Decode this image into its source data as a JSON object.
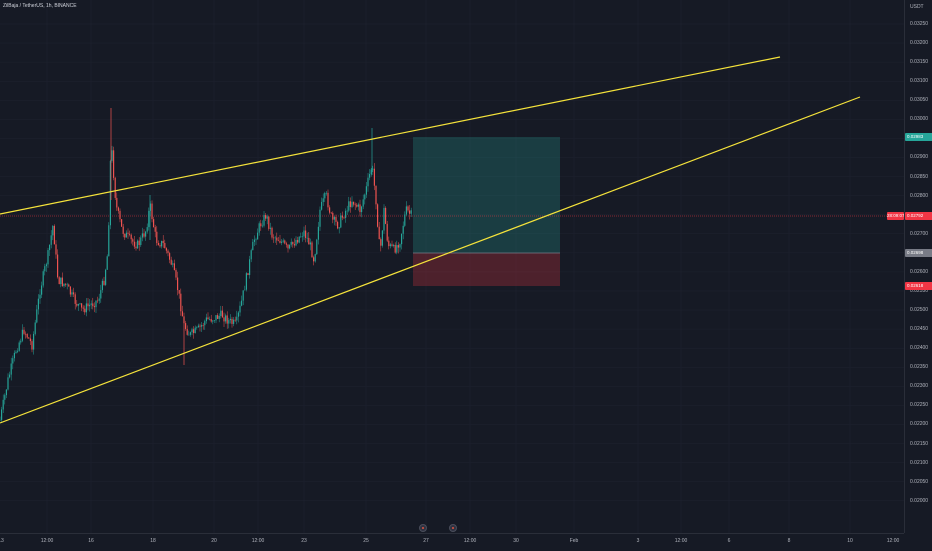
{
  "header": {
    "symbol_legend": "ZilBaja / TetherUS, 1h, BINANCE"
  },
  "price_axis": {
    "currency": "USDT",
    "labels": [
      "0.03250",
      "0.03200",
      "0.03150",
      "0.03100",
      "0.03050",
      "0.03000",
      "0.02950",
      "0.02900",
      "0.02850",
      "0.02800",
      "0.02750",
      "0.02700",
      "0.02650",
      "0.02600",
      "0.02550",
      "0.02500",
      "0.02450",
      "0.02400",
      "0.02350",
      "0.02300",
      "0.02250",
      "0.02200",
      "0.02150",
      "0.02100",
      "0.02050",
      "0.02000"
    ],
    "tags": {
      "target": {
        "text": "0.02983",
        "color": "#26a69a"
      },
      "current": {
        "text": "0.02792",
        "color": "#f23645"
      },
      "entry": {
        "text": "0.02698",
        "color": "#787b86"
      },
      "stop": {
        "text": "0.02618",
        "color": "#f23645"
      }
    },
    "countdown_tag": "28:09:07"
  },
  "time_axis": {
    "labels": [
      "13",
      "12:00",
      "16",
      "18",
      "20",
      "12:00",
      "23",
      "25",
      "27",
      "12:00",
      "30",
      "Feb",
      "3",
      "12:00",
      "6",
      "8",
      "10",
      "12:00"
    ]
  },
  "colors": {
    "background": "#161a25",
    "candle_up": "#26a69a",
    "candle_down": "#ef5350",
    "trendline": "#f5e33b",
    "target_zone": "rgba(38,166,154,0.25)",
    "stop_zone": "rgba(242,54,69,0.25)",
    "price_line": "#f23645"
  },
  "chart_data": {
    "type": "candlestick",
    "timeframe": "1h",
    "x_range": [
      "Jan 13",
      "Feb 12"
    ],
    "y_range": [
      0.0198,
      0.0327
    ],
    "events": [
      "event-icon",
      "event-icon"
    ]
  }
}
